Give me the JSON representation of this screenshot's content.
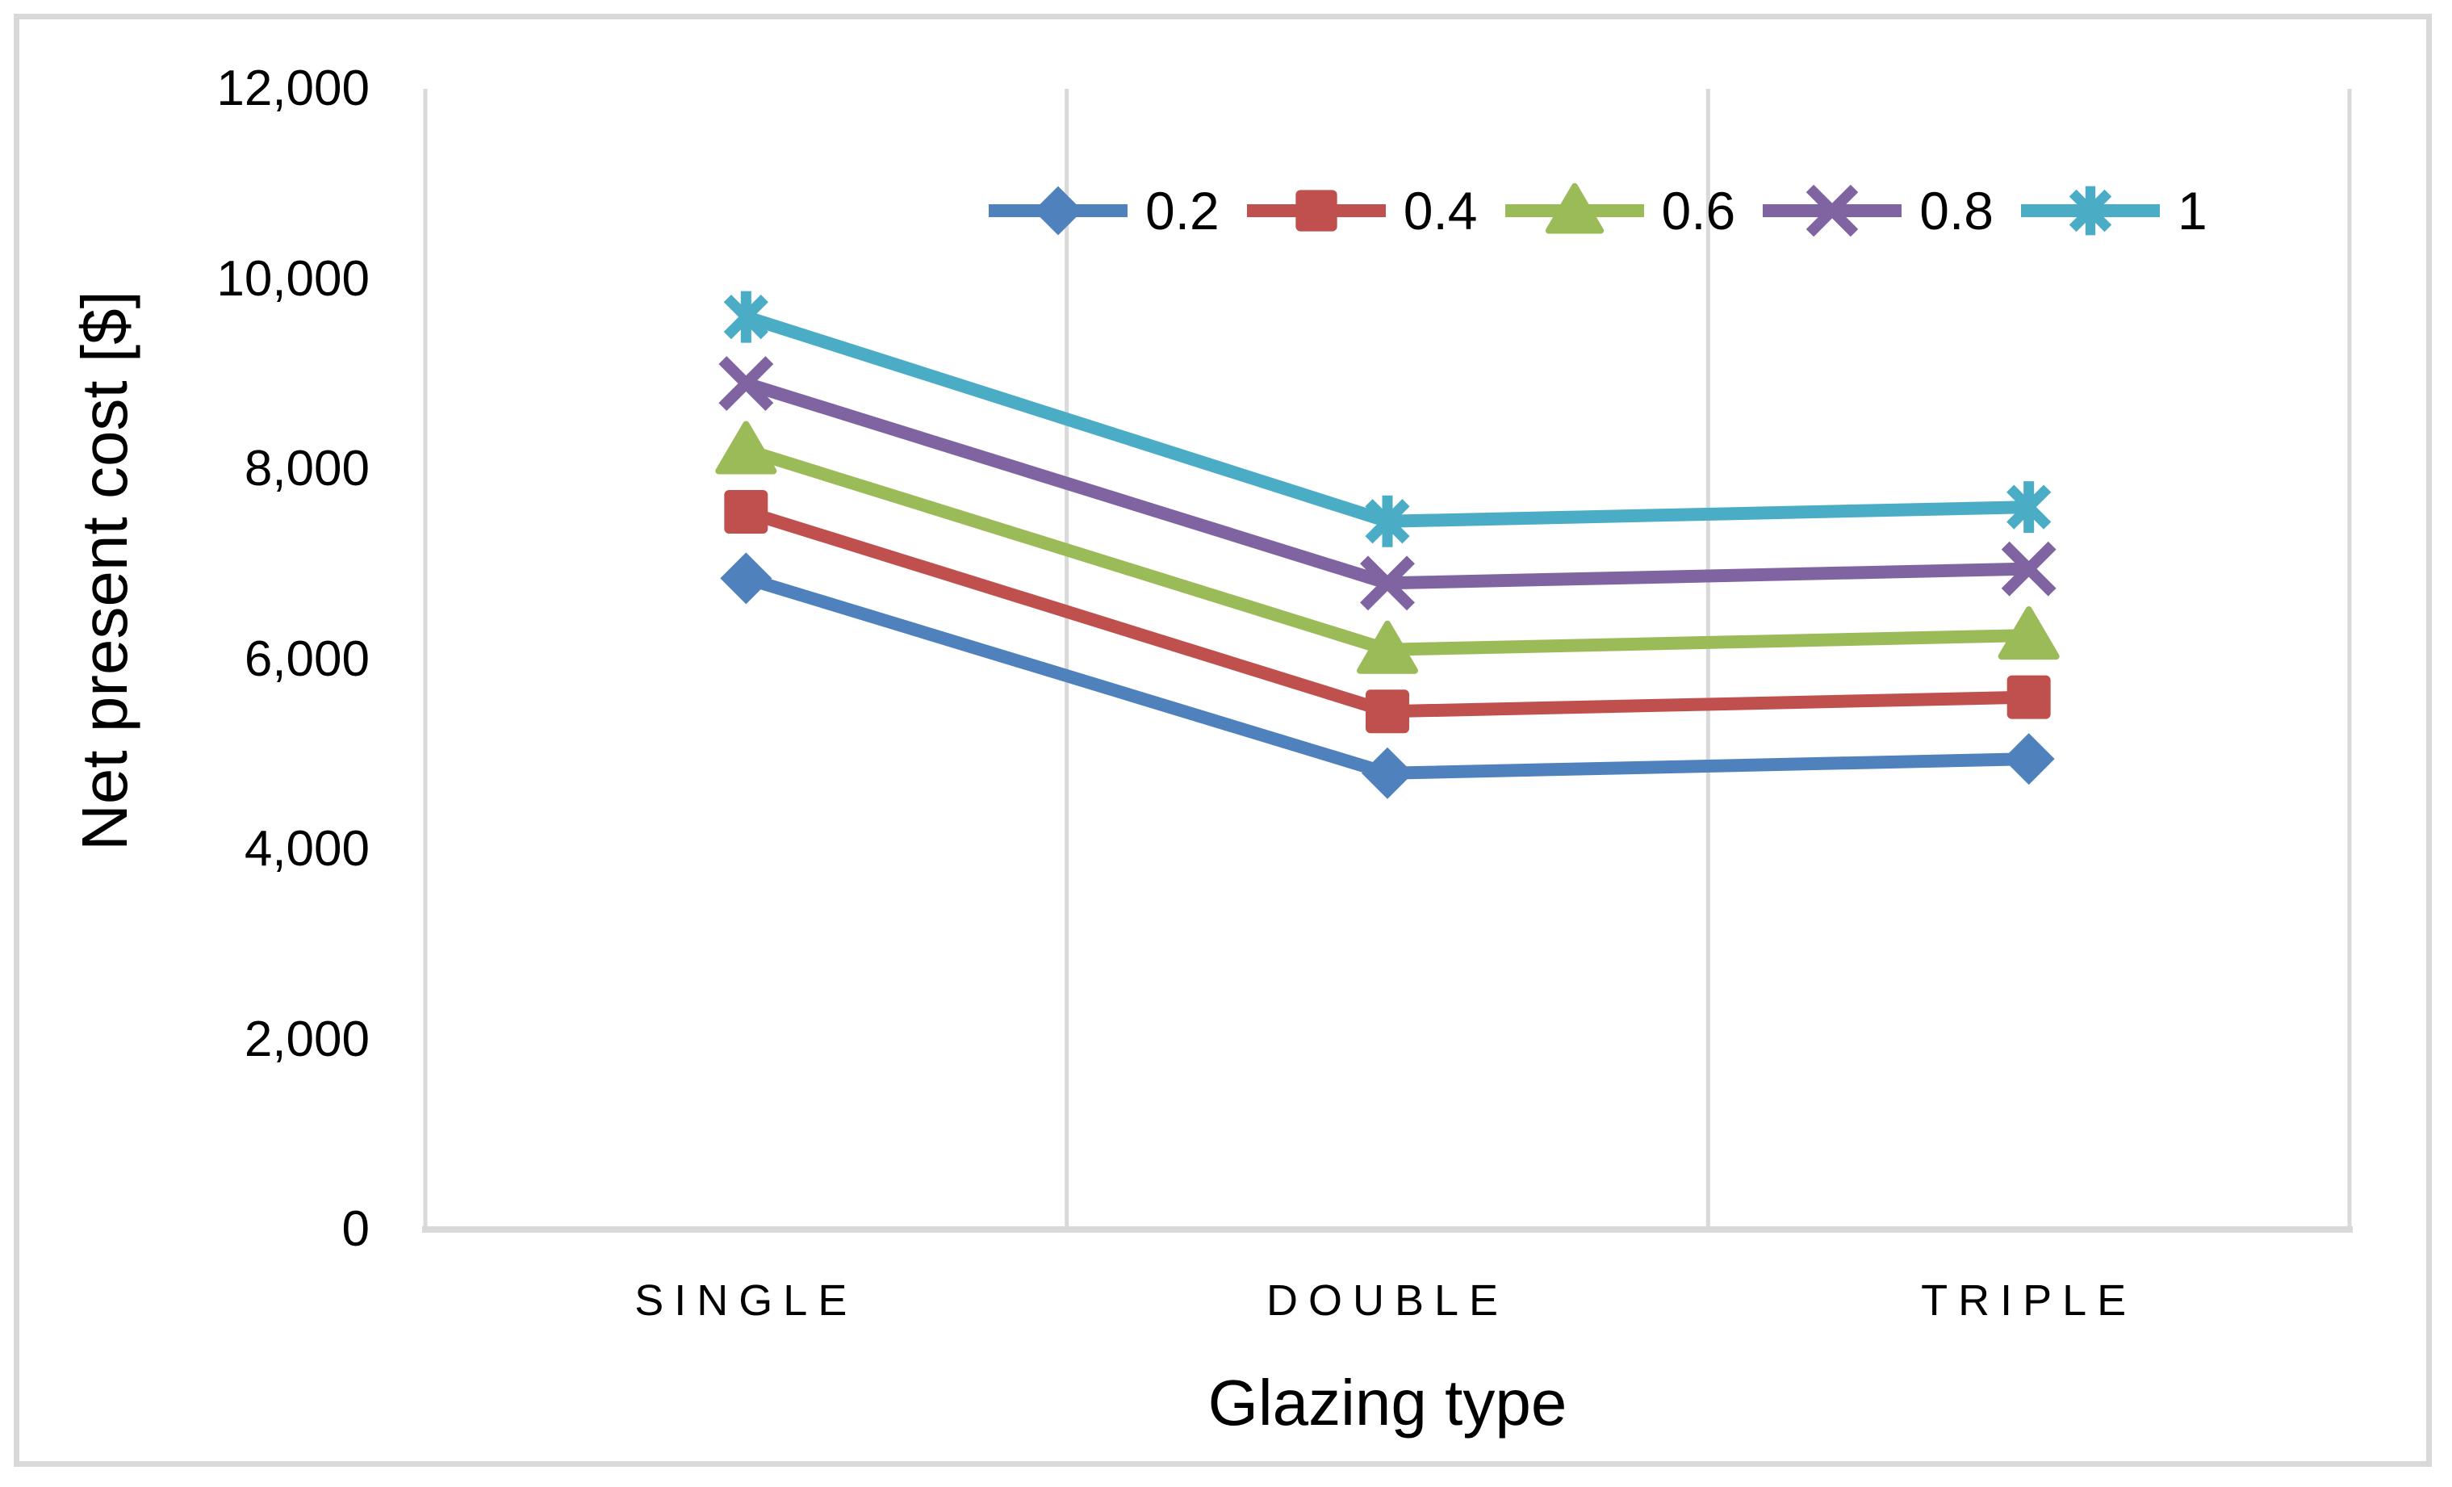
{
  "chart_data": {
    "type": "line",
    "title": "",
    "xlabel": "Glazing type",
    "ylabel": "Net present cost [$]",
    "categories": [
      "SINGLE",
      "DOUBLE",
      "TRIPLE"
    ],
    "series": [
      {
        "name": "0.2",
        "marker": "diamond",
        "color": "#4F81BD",
        "values": [
          6850,
          4800,
          4950
        ]
      },
      {
        "name": "0.4",
        "marker": "square",
        "color": "#C0504D",
        "values": [
          7550,
          5450,
          5600
        ]
      },
      {
        "name": "0.6",
        "marker": "triangle",
        "color": "#9BBB59",
        "values": [
          8200,
          6100,
          6250
        ]
      },
      {
        "name": "0.8",
        "marker": "x",
        "color": "#8064A2",
        "values": [
          8900,
          6800,
          6950
        ]
      },
      {
        "name": "1",
        "marker": "asterisk",
        "color": "#4BACC6",
        "values": [
          9600,
          7450,
          7600
        ]
      }
    ],
    "ylim": [
      0,
      12000
    ],
    "yticks": [
      {
        "value": 0,
        "label": "0"
      },
      {
        "value": 2000,
        "label": "2,000"
      },
      {
        "value": 4000,
        "label": "4,000"
      },
      {
        "value": 6000,
        "label": "6,000"
      },
      {
        "value": 8000,
        "label": "8,000"
      },
      {
        "value": 10000,
        "label": "10,000"
      },
      {
        "value": 12000,
        "label": "12,000"
      }
    ],
    "grid": "vertical-only",
    "legend_position": "top-inside"
  },
  "style_colors": {
    "gridline": "#d9d9d9",
    "axis_line": "#d9d9d9",
    "frame_border": "#d9d9d9",
    "text": "#000000",
    "background": "#ffffff"
  }
}
